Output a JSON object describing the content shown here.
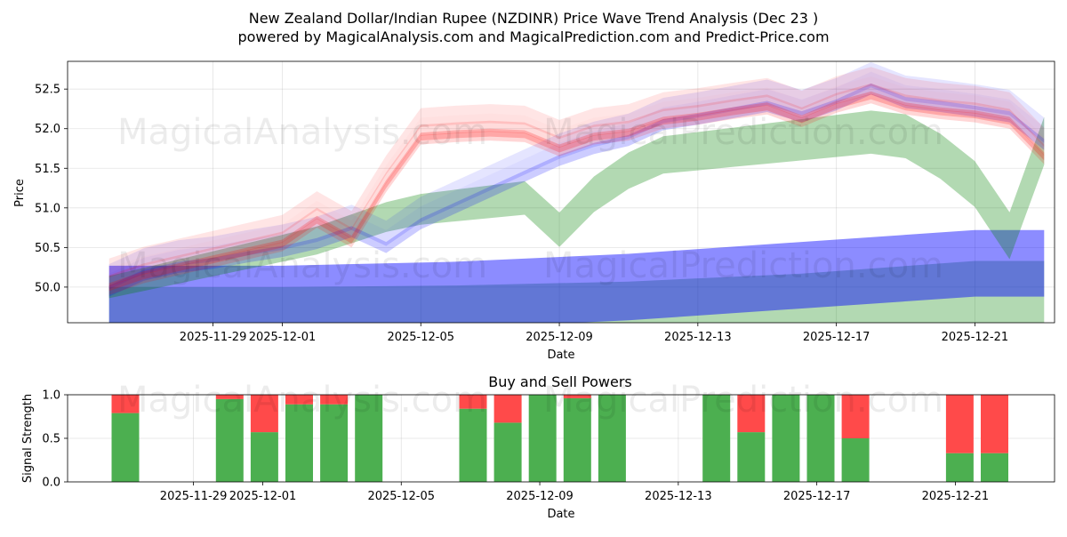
{
  "chart_data": [
    {
      "type": "area",
      "title_line1": "New Zealand Dollar/Indian Rupee (NZDINR) Price Wave Trend Analysis (Dec 23 )",
      "title_line2": "powered by MagicalAnalysis.com and MagicalPrediction.com and Predict-Price.com",
      "xlabel": "Date",
      "ylabel": "Price",
      "xlim": [
        -3.2,
        25.3
      ],
      "ylim": [
        49.55,
        52.85
      ],
      "y_ticks": [
        "50.0",
        "50.5",
        "51.0",
        "51.5",
        "52.0",
        "52.5"
      ],
      "x_ticks": [
        {
          "day": 1,
          "label": "2025-11-29"
        },
        {
          "day": 3,
          "label": "2025-12-01"
        },
        {
          "day": 7,
          "label": "2025-12-05"
        },
        {
          "day": 11,
          "label": "2025-12-09"
        },
        {
          "day": 15,
          "label": "2025-12-13"
        },
        {
          "day": 19,
          "label": "2025-12-17"
        },
        {
          "day": 23,
          "label": "2025-12-21"
        }
      ],
      "watermarks": [
        "MagicalAnalysis.com",
        "MagicalPrediction.com"
      ],
      "series": [
        {
          "name": "price-waves-red",
          "color": "#ff0000",
          "x": [
            -2,
            -1,
            0,
            1,
            2,
            3,
            4,
            5,
            6,
            7,
            8,
            9,
            10,
            11,
            12,
            13,
            14,
            15,
            16,
            17,
            18,
            19,
            20,
            21,
            22,
            23,
            24,
            25
          ],
          "center": [
            50.0,
            50.15,
            50.25,
            50.35,
            50.45,
            50.55,
            50.85,
            50.6,
            51.3,
            51.9,
            51.93,
            51.95,
            51.93,
            51.75,
            51.9,
            51.95,
            52.1,
            52.15,
            52.22,
            52.28,
            52.12,
            52.3,
            52.42,
            52.28,
            52.22,
            52.18,
            52.1,
            51.65
          ]
        },
        {
          "name": "price-waves-blue",
          "color": "#0000ff",
          "x": [
            -2,
            -1,
            0,
            1,
            2,
            3,
            4,
            5,
            6,
            7,
            8,
            9,
            10,
            11,
            12,
            13,
            14,
            15,
            16,
            17,
            18,
            19,
            20,
            21,
            22,
            23,
            24,
            25
          ],
          "center": [
            49.95,
            50.15,
            50.25,
            50.3,
            50.38,
            50.45,
            50.55,
            50.7,
            50.5,
            50.8,
            51.0,
            51.2,
            51.4,
            51.6,
            51.75,
            51.85,
            52.05,
            52.12,
            52.2,
            52.28,
            52.15,
            52.3,
            52.5,
            52.33,
            52.28,
            52.22,
            52.15,
            51.8
          ]
        },
        {
          "name": "price-waves-green",
          "color": "#008000",
          "x": [
            -2,
            -1,
            0,
            1,
            2,
            3,
            4,
            5,
            6,
            7,
            8,
            9,
            10,
            11,
            12,
            13,
            14,
            15,
            16,
            17,
            18,
            19,
            20,
            21,
            22,
            23,
            24,
            25
          ],
          "center": [
            50.0,
            50.1,
            50.2,
            50.3,
            50.4,
            50.5,
            50.6,
            50.75,
            50.9,
            51.0,
            51.05,
            51.1,
            51.15,
            50.75,
            51.2,
            51.5,
            51.7,
            51.75,
            51.8,
            51.85,
            51.9,
            51.95,
            52.0,
            51.95,
            51.7,
            51.35,
            50.7,
            51.9
          ]
        },
        {
          "name": "long-band-blue",
          "color": "#0000ff",
          "x": [
            -2,
            3,
            8,
            13,
            18,
            23,
            25
          ],
          "center": [
            49.85,
            49.85,
            49.9,
            50.0,
            50.15,
            50.3,
            50.3
          ]
        },
        {
          "name": "long-band-green",
          "color": "#008000",
          "x": [
            -2,
            3,
            8,
            13,
            18,
            23,
            25
          ],
          "center": [
            49.55,
            49.55,
            49.57,
            49.62,
            49.72,
            49.88,
            49.88
          ]
        }
      ]
    },
    {
      "type": "bar",
      "title": "Buy and Sell Powers",
      "xlabel": "Date",
      "ylabel": "Signal Strength",
      "ylim": [
        0,
        1
      ],
      "y_ticks": [
        "0.0",
        "0.5",
        "1.0"
      ],
      "x_ticks": [
        {
          "day": 1,
          "label": "2025-11-29"
        },
        {
          "day": 3,
          "label": "2025-12-01"
        },
        {
          "day": 7,
          "label": "2025-12-05"
        },
        {
          "day": 11,
          "label": "2025-12-09"
        },
        {
          "day": 15,
          "label": "2025-12-13"
        },
        {
          "day": 19,
          "label": "2025-12-17"
        },
        {
          "day": 23,
          "label": "2025-12-21"
        }
      ],
      "buy_color": "#4caf50",
      "sell_color": "#ff4a4a",
      "days": [
        0,
        3,
        4,
        5,
        6,
        7,
        10,
        11,
        12,
        13,
        14,
        17,
        18,
        19,
        20,
        21,
        24,
        25
      ],
      "buy": [
        0.79,
        0.95,
        0.57,
        0.89,
        0.89,
        1.0,
        0.84,
        0.68,
        1.0,
        0.96,
        1.0,
        1.0,
        0.57,
        1.0,
        1.0,
        0.5,
        0.33,
        0.33
      ],
      "sell": [
        0.21,
        0.05,
        0.43,
        0.11,
        0.11,
        0.0,
        0.16,
        0.32,
        0.0,
        0.04,
        0.0,
        0.0,
        0.43,
        0.0,
        0.0,
        0.5,
        0.67,
        0.67
      ]
    }
  ]
}
